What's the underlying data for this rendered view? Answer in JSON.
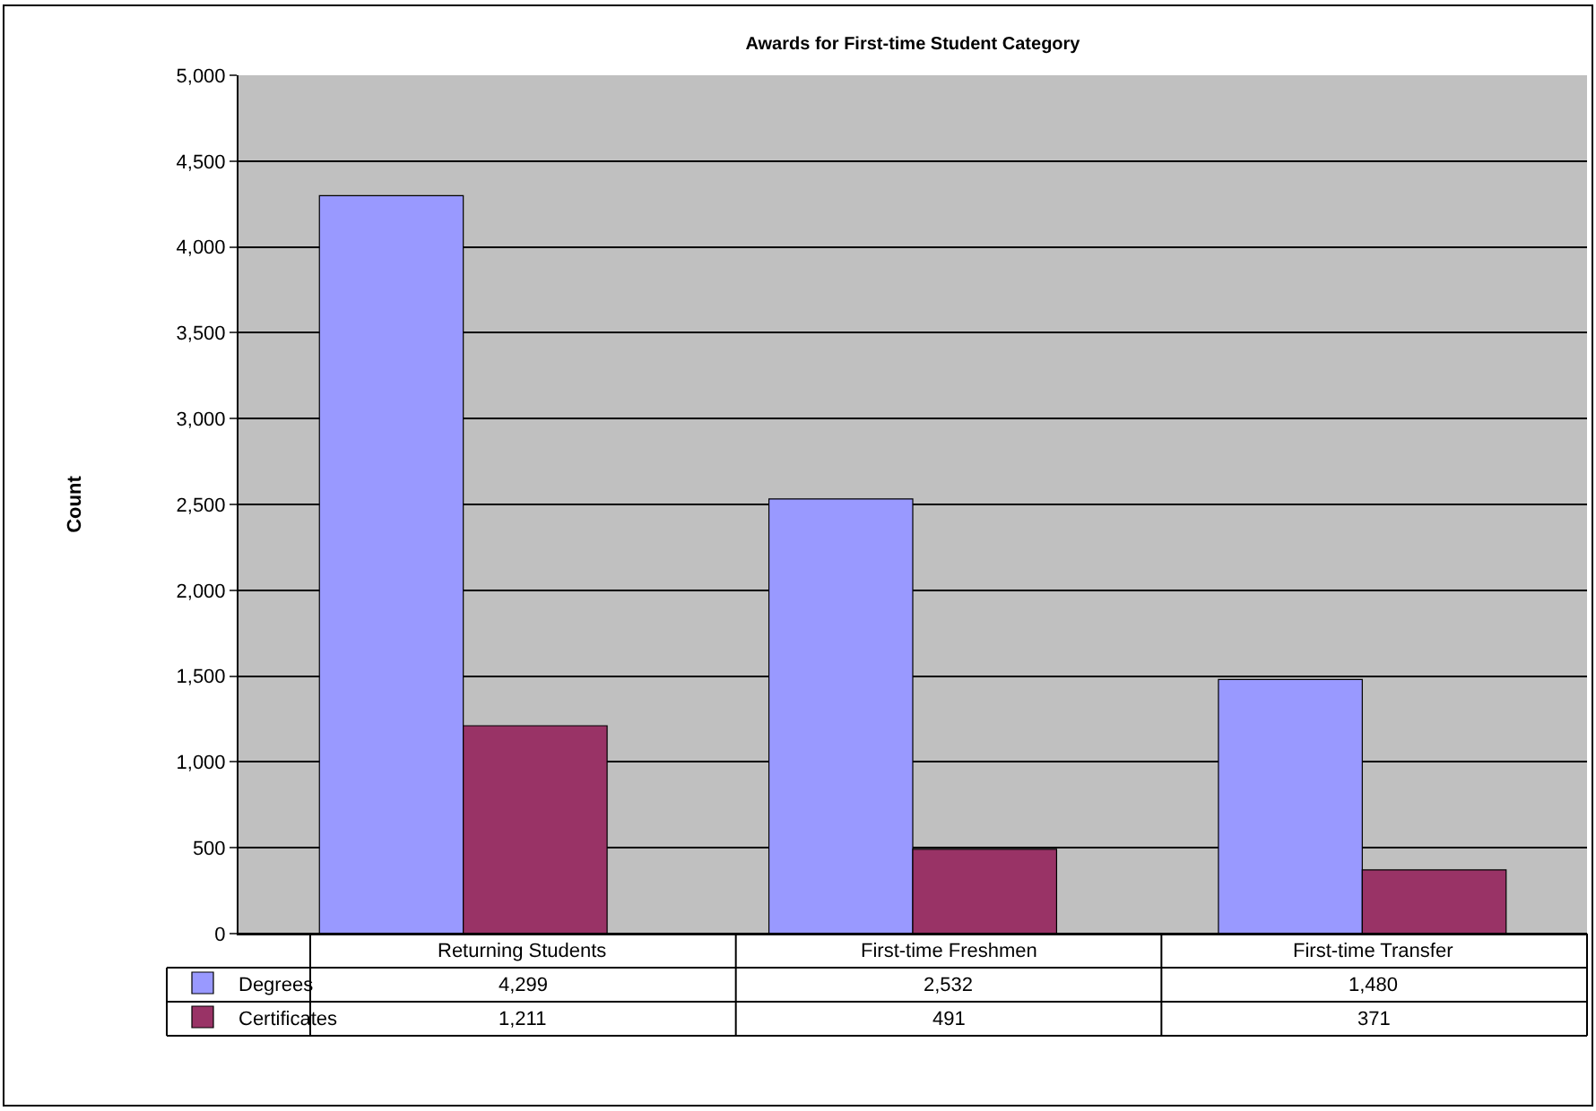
{
  "chart_data": {
    "type": "bar",
    "title": "Awards for First-time Student Category",
    "ylabel": "Count",
    "categories": [
      "Returning Students",
      "First-time Freshmen",
      "First-time Transfer"
    ],
    "series": [
      {
        "name": "Degrees",
        "color": "#9999ff",
        "values": [
          4299,
          2532,
          1480
        ],
        "value_labels": [
          "4,299",
          "2,532",
          "1,480"
        ]
      },
      {
        "name": "Certificates",
        "color": "#993366",
        "values": [
          1211,
          491,
          371
        ],
        "value_labels": [
          "1,211",
          "491",
          "371"
        ]
      }
    ],
    "ylim": [
      0,
      5000
    ],
    "yticks": [
      {
        "value": 0,
        "label": "0"
      },
      {
        "value": 500,
        "label": "500"
      },
      {
        "value": 1000,
        "label": "1,000"
      },
      {
        "value": 1500,
        "label": "1,500"
      },
      {
        "value": 2000,
        "label": "2,000"
      },
      {
        "value": 2500,
        "label": "2,500"
      },
      {
        "value": 3000,
        "label": "3,000"
      },
      {
        "value": 3500,
        "label": "3,500"
      },
      {
        "value": 4000,
        "label": "4,000"
      },
      {
        "value": 4500,
        "label": "4,500"
      },
      {
        "value": 5000,
        "label": "5,000"
      }
    ],
    "grid": "y",
    "legend": "bottom left"
  }
}
